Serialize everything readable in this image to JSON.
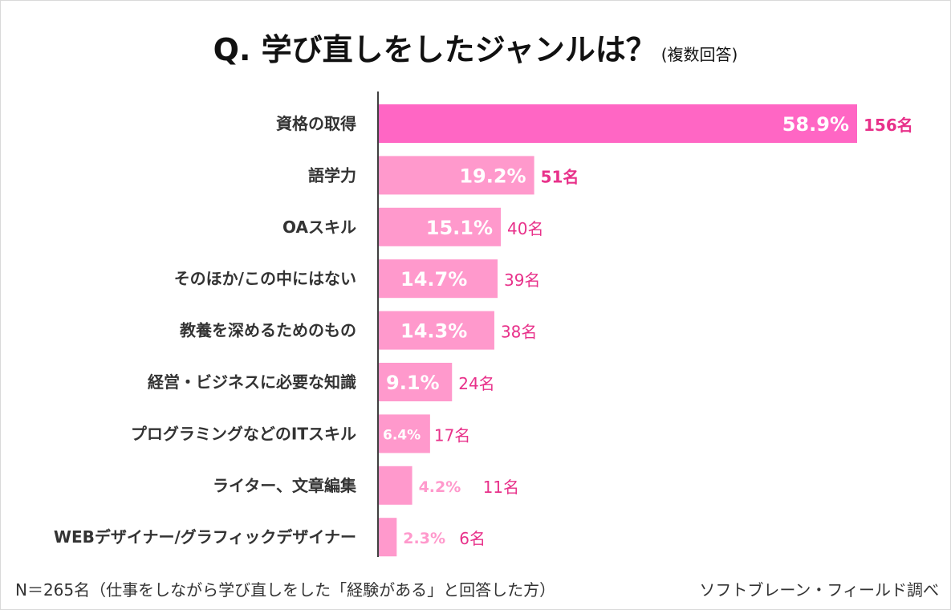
{
  "title": {
    "main": "Q.  学び直しをしたジャンルは？",
    "sub": "(複数回答)"
  },
  "chart_data": {
    "type": "bar",
    "orientation": "horizontal",
    "title": "Q. 学び直しをしたジャンルは？(複数回答)",
    "xlabel": "",
    "ylabel": "",
    "xlim": [
      0,
      60
    ],
    "grid": false,
    "categories": [
      "資格の取得",
      "語学力",
      "OAスキル",
      "そのほか/この中にはない",
      "教養を深めるためのもの",
      "経営・ビジネスに必要な知識",
      "プログラミングなどのITスキル",
      "ライター、文章編集",
      "WEBデザイナー/グラフィックデザイナー"
    ],
    "values": [
      58.9,
      19.2,
      15.1,
      14.7,
      14.3,
      9.1,
      6.4,
      4.2,
      2.3
    ],
    "percent_labels": [
      "58.9%",
      "19.2%",
      "15.1%",
      "14.7%",
      "14.3%",
      "9.1%",
      "6.4%",
      "4.2%",
      "2.3%"
    ],
    "count_labels": [
      "156名",
      "51名",
      "40名",
      "39名",
      "38名",
      "24名",
      "17名",
      "11名",
      "6名"
    ],
    "colors": {
      "top": "#FF66C4",
      "other": "#FF99CC",
      "count": "#E8318A",
      "axis": "#404040"
    }
  },
  "footer": {
    "note": "N＝265名（仕事をしながら学び直しをした「経験がある」と回答した方）",
    "source": "ソフトブレーン・フィールド調べ"
  }
}
